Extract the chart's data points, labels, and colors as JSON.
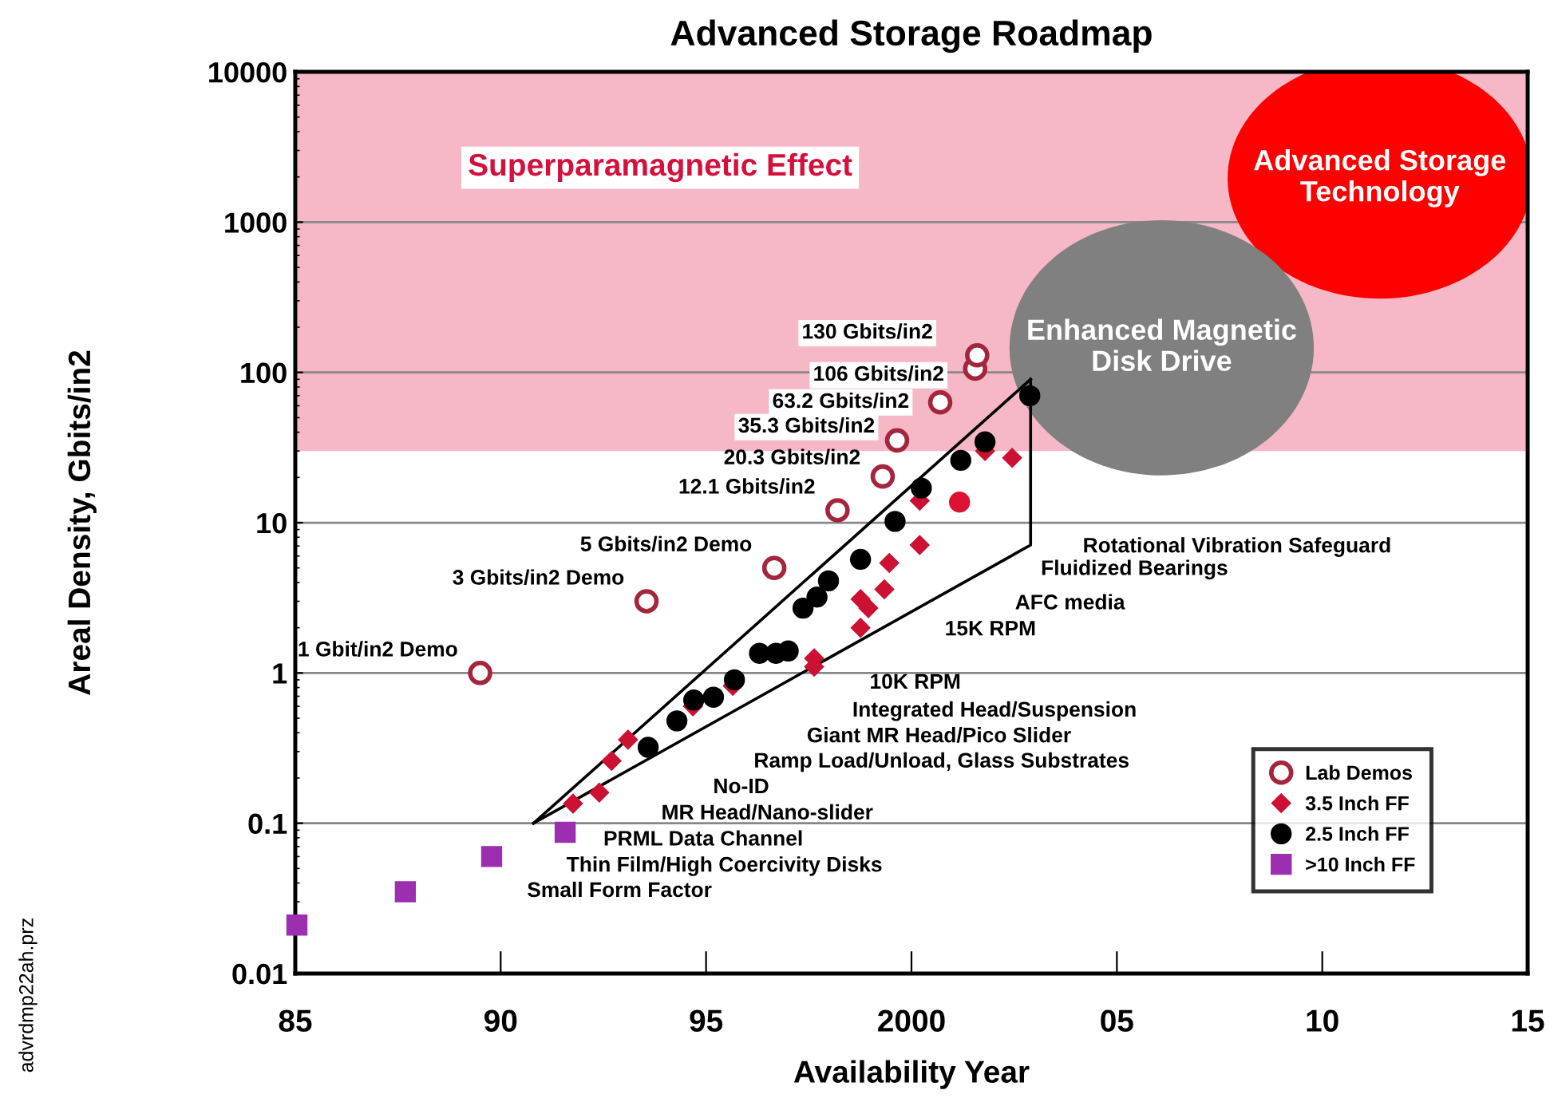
{
  "chart_data": {
    "type": "scatter",
    "title": "Advanced Storage Roadmap",
    "xlabel": "Availability Year",
    "ylabel": "Areal Density, Gbits/in2",
    "log": "y",
    "xlim": [
      1985,
      2015
    ],
    "ylim": [
      0.01,
      10000
    ],
    "xticks": [
      {
        "value": 1985,
        "label": "85"
      },
      {
        "value": 1990,
        "label": "90"
      },
      {
        "value": 1995,
        "label": "95"
      },
      {
        "value": 2000,
        "label": "2000"
      },
      {
        "value": 2005,
        "label": "05"
      },
      {
        "value": 2010,
        "label": "10"
      },
      {
        "value": 2015,
        "label": "15"
      }
    ],
    "yticks": [
      {
        "value": 0.01,
        "label": "0.01"
      },
      {
        "value": 0.1,
        "label": "0.1"
      },
      1,
      10,
      100,
      1000,
      10000
    ],
    "grid": "y",
    "legend": "bottom right",
    "bands": [
      {
        "axis": "y",
        "from": 30,
        "to": 10000,
        "label": "Superparamagnetic Effect",
        "color": "#f6b8c6"
      }
    ],
    "series": [
      {
        "type": "line",
        "x": [
          1990.8,
          2002.9
        ],
        "values": [
          0.1,
          90
        ],
        "color": "#000000",
        "marker": "none",
        "line_style": "solid"
      },
      {
        "name": "Lab Demos",
        "marker": "circle",
        "color": "#a3263c",
        "x": [
          1989.5,
          1993.55,
          1996.66,
          1998.2,
          1999.3,
          1999.65,
          2000.7,
          2001.55,
          2001.6
        ],
        "values": [
          1,
          3,
          5,
          12.1,
          20.3,
          35.3,
          63.2,
          106,
          130
        ]
      },
      {
        "name": "3.5 Inch FF",
        "marker": "diamond",
        "color": "#cc1133",
        "x": [
          2001.79,
          2002.45,
          2000.2,
          2000.2,
          1999.46,
          1999.34,
          1998.76,
          1998.95,
          1998.76,
          1997.63,
          1997.63,
          1995.65,
          1994.68,
          1993.1,
          1992.7,
          1992.4,
          1991.76
        ],
        "values": [
          30,
          27,
          14,
          7.1,
          5.4,
          3.6,
          3.1,
          2.7,
          2.0,
          1.25,
          1.1,
          0.82,
          0.6,
          0.36,
          0.26,
          0.16,
          0.135
        ]
      },
      {
        "name": "2.5 Inch FF",
        "marker": "circle",
        "color": "#000000",
        "x": [
          2002.88,
          2001.79,
          2001.2,
          2000.24,
          1999.6,
          1998.76,
          1997.98,
          1997.7,
          1997.36,
          1997.0,
          1996.7,
          1996.3,
          1995.69,
          1995.18,
          1994.7,
          1994.29,
          1993.59
        ],
        "values": [
          70,
          34.5,
          26,
          17,
          10.2,
          5.7,
          4.1,
          3.2,
          2.7,
          1.4,
          1.35,
          1.35,
          0.9,
          0.69,
          0.66,
          0.48,
          0.32
        ]
      },
      {
        "name": ">10 Inch FF",
        "marker": "square",
        "color": "#9b2fb0",
        "x": [
          1991.57,
          1989.78,
          1987.68,
          1985.04
        ],
        "values": [
          0.087,
          0.06,
          0.035,
          0.021
        ]
      },
      {
        "marker": "circle",
        "color": "#dd1133",
        "x": [
          2001.17
        ],
        "values": [
          13.7
        ]
      },
      {
        "type": "line",
        "x": [
          1990.8,
          2002.9,
          2002.9
        ],
        "values": [
          0.1,
          7.1,
          90
        ],
        "color": "#000000",
        "marker": "none",
        "line_style": "solid"
      }
    ],
    "annotations": [
      "Enhanced Magnetic\nDisk Drive",
      "Advanced Storage\nTechnology",
      {
        "text": "1 Gbit/in2 Demo",
        "x": 1989.5,
        "y": 1
      },
      {
        "text": "3 Gbits/in2 Demo",
        "x": 1993.55,
        "y": 3
      },
      {
        "text": "5 Gbits/in2 Demo",
        "x": 1996.66,
        "y": 5
      },
      {
        "text": "12.1 Gbits/in2",
        "x": 1998.2,
        "y": 12.1
      },
      {
        "text": "20.3 Gbits/in2",
        "x": 1999.3,
        "y": 20.3
      },
      {
        "text": "35.3 Gbits/in2",
        "x": 1999.65,
        "y": 35.3
      },
      {
        "text": "63.2 Gbits/in2",
        "x": 2000.7,
        "y": 63.2
      },
      {
        "text": "106 Gbits/in2",
        "x": 2001.55,
        "y": 106
      },
      {
        "text": "130 Gbits/in2",
        "x": 2001.6,
        "y": 130
      },
      "Rotational Vibration Safeguard",
      "Fluidized Bearings",
      "AFC media",
      "15K RPM",
      "10K RPM",
      "Integrated Head/Suspension",
      "Giant MR Head/Pico Slider",
      "Ramp Load/Unload, Glass Substrates",
      "No-ID",
      "MR Head/Nano-slider",
      "PRML Data Channel",
      "Thin Film/High Coercivity Disks",
      "Small Form Factor",
      "advrdmp22ah.prz"
    ]
  }
}
